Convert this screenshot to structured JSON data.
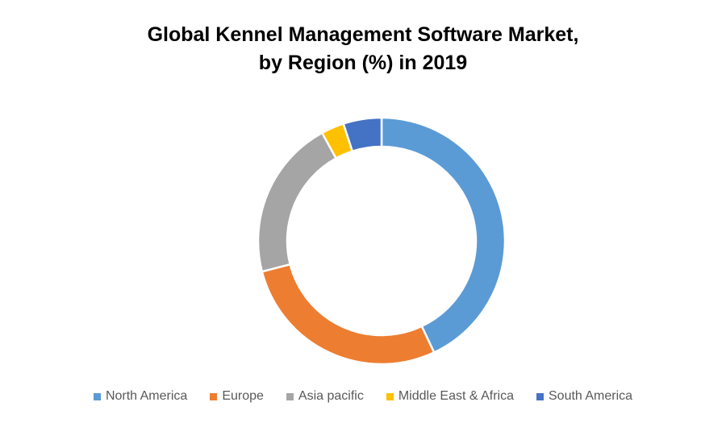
{
  "chart_data": {
    "type": "pie",
    "style": "donut",
    "title_lines": [
      "Global Kennel Management Software Market,",
      "by Region (%) in 2019"
    ],
    "categories": [
      "North America",
      "Europe",
      "Asia pacific",
      "Middle East & Africa",
      "South America"
    ],
    "values": [
      43,
      28,
      21,
      3,
      5
    ],
    "colors": [
      "#5B9BD5",
      "#ED7D31",
      "#A5A5A5",
      "#FFC000",
      "#4472C4"
    ],
    "legend_position": "bottom"
  }
}
